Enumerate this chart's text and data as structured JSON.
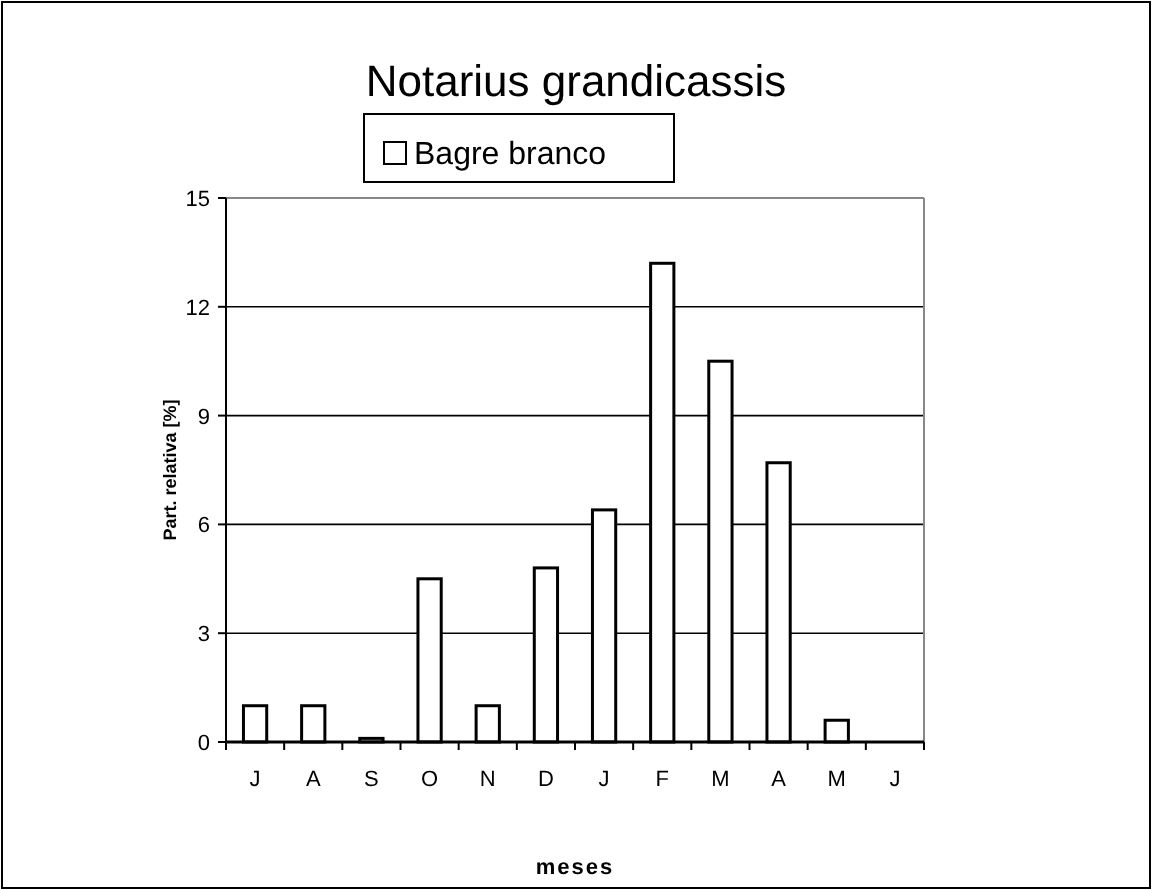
{
  "chart_data": {
    "type": "bar",
    "title": "Notarius grandicassis",
    "xlabel": "meses",
    "ylabel": "Part. relativa [%]",
    "categories": [
      "J",
      "A",
      "S",
      "O",
      "N",
      "D",
      "J",
      "F",
      "M",
      "A",
      "M",
      "J"
    ],
    "series": [
      {
        "name": "Bagre branco",
        "color": "#ffffff",
        "values": [
          1.0,
          1.0,
          0.1,
          4.5,
          1.0,
          4.8,
          6.4,
          13.2,
          10.5,
          7.7,
          0.6,
          0
        ]
      }
    ],
    "ylim": [
      0,
      15
    ],
    "yticks": [
      0,
      3,
      6,
      9,
      12,
      15
    ],
    "grid": "y",
    "legend": "top"
  }
}
